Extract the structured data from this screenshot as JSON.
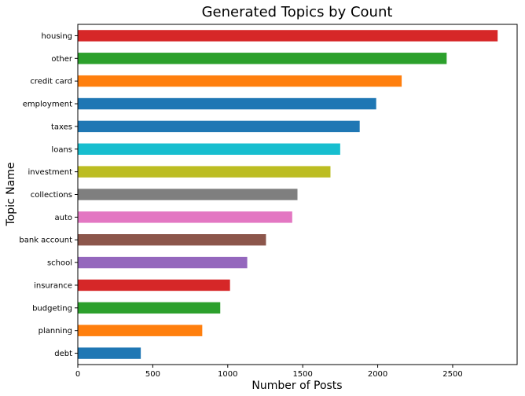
{
  "chart_data": {
    "type": "bar",
    "orientation": "horizontal",
    "title": "Generated Topics by Count",
    "xlabel": "Number of Posts",
    "ylabel": "Topic Name",
    "xlim": [
      0,
      2930
    ],
    "x_ticks": [
      0,
      500,
      1000,
      1500,
      2000,
      2500
    ],
    "grid": false,
    "legend": "none",
    "categories": [
      "housing",
      "other",
      "credit card",
      "employment",
      "taxes",
      "loans",
      "investment",
      "collections",
      "auto",
      "bank account",
      "school",
      "insurance",
      "budgeting",
      "planning",
      "debt"
    ],
    "values": [
      2800,
      2460,
      2160,
      1990,
      1880,
      1750,
      1685,
      1465,
      1430,
      1255,
      1130,
      1015,
      950,
      830,
      420
    ],
    "colors": [
      "#d62728",
      "#2ca02c",
      "#ff7f0e",
      "#1f77b4",
      "#1f77b4",
      "#17becf",
      "#bcbd22",
      "#7f7f7f",
      "#e377c2",
      "#8c564b",
      "#9467bd",
      "#d62728",
      "#2ca02c",
      "#ff7f0e",
      "#1f77b4"
    ]
  }
}
